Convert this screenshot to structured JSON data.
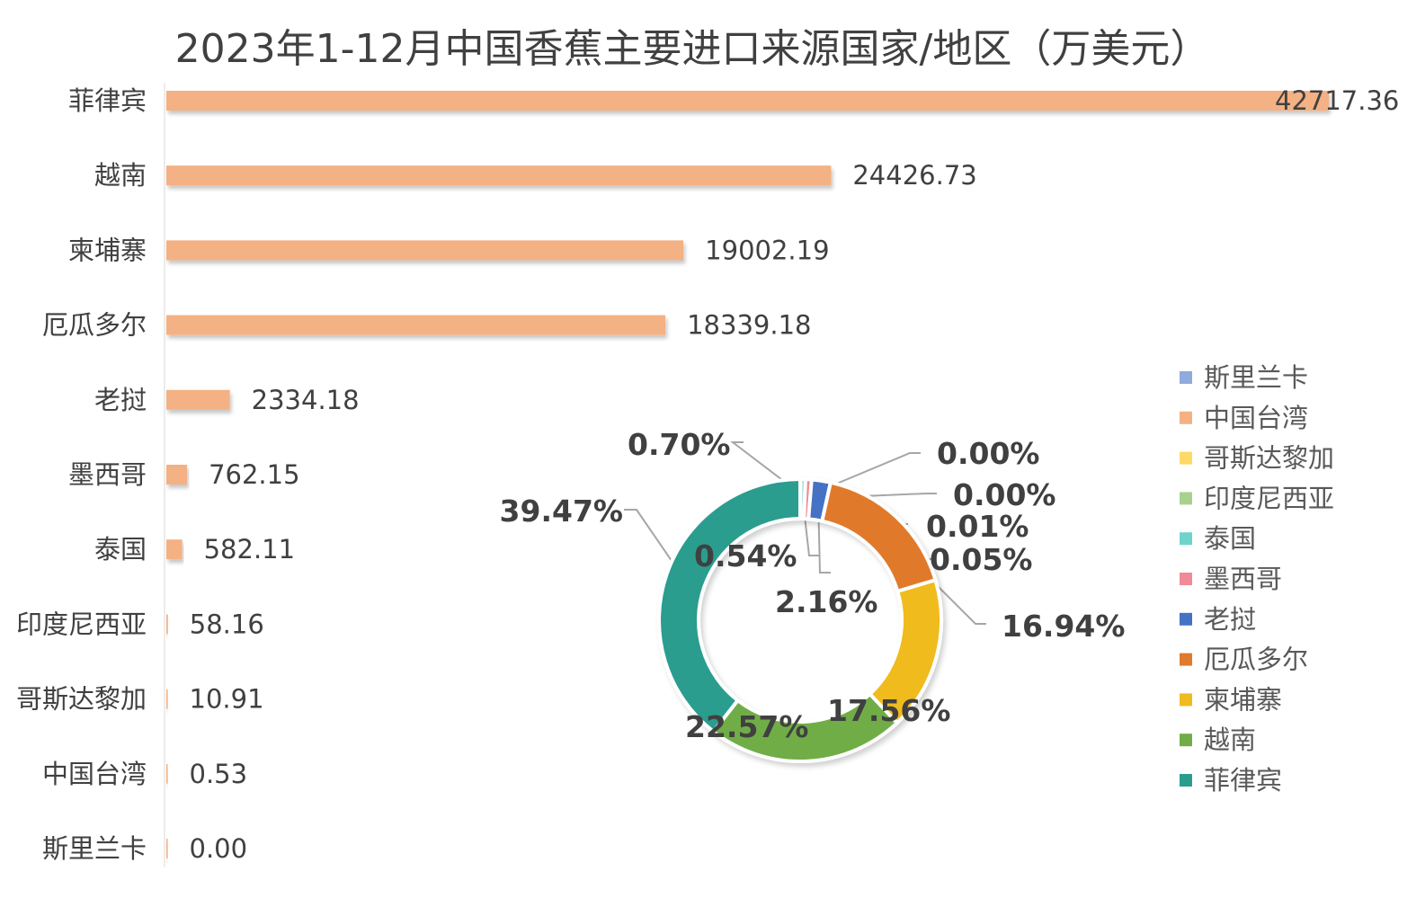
{
  "title": "2023年1-12月中国香蕉主要进口来源国家/地区（万美元）",
  "chart_data": [
    {
      "type": "bar",
      "orientation": "horizontal",
      "categories": [
        "菲律宾",
        "越南",
        "柬埔寨",
        "厄瓜多尔",
        "老挝",
        "墨西哥",
        "泰国",
        "印度尼西亚",
        "哥斯达黎加",
        "中国台湾",
        "斯里兰卡"
      ],
      "values": [
        42717.36,
        24426.73,
        19002.19,
        18339.18,
        2334.18,
        762.15,
        582.11,
        58.16,
        10.91,
        0.53,
        0.0
      ],
      "value_labels": [
        "42717.36",
        "24426.73",
        "19002.19",
        "18339.18",
        "2334.18",
        "762.15",
        "582.11",
        "58.16",
        "10.91",
        "0.53",
        "0.00"
      ],
      "xlim": [
        0,
        42717.36
      ],
      "bar_color": "#F4B183",
      "grid": false
    },
    {
      "type": "pie",
      "style": "donut",
      "slices": [
        {
          "name": "斯里兰卡",
          "value": 0.0,
          "label": "0.00%",
          "color": "#8FAADC"
        },
        {
          "name": "中国台湾",
          "value": 0.0,
          "label": "0.00%",
          "color": "#F4B183"
        },
        {
          "name": "哥斯达黎加",
          "value": 0.01,
          "label": "0.01%",
          "color": "#FFD966"
        },
        {
          "name": "印度尼西亚",
          "value": 0.05,
          "label": "0.05%",
          "color": "#A9D18E"
        },
        {
          "name": "泰国",
          "value": 0.54,
          "label": "0.54%",
          "color": "#6FD3CC"
        },
        {
          "name": "墨西哥",
          "value": 0.7,
          "label": "0.70%",
          "color": "#F08A97"
        },
        {
          "name": "老挝",
          "value": 2.16,
          "label": "2.16%",
          "color": "#4472C4"
        },
        {
          "name": "厄瓜多尔",
          "value": 16.94,
          "label": "16.94%",
          "color": "#E07A2C"
        },
        {
          "name": "柬埔寨",
          "value": 17.56,
          "label": "17.56%",
          "color": "#F0BB1E"
        },
        {
          "name": "越南",
          "value": 22.57,
          "label": "22.57%",
          "color": "#70AD47"
        },
        {
          "name": "菲律宾",
          "value": 39.47,
          "label": "39.47%",
          "color": "#2A9D8F"
        }
      ],
      "legend": {
        "position": "right",
        "entries": [
          "斯里兰卡",
          "中国台湾",
          "哥斯达黎加",
          "印度尼西亚",
          "泰国",
          "墨西哥",
          "老挝",
          "厄瓜多尔",
          "柬埔寨",
          "越南",
          "菲律宾"
        ]
      }
    }
  ]
}
